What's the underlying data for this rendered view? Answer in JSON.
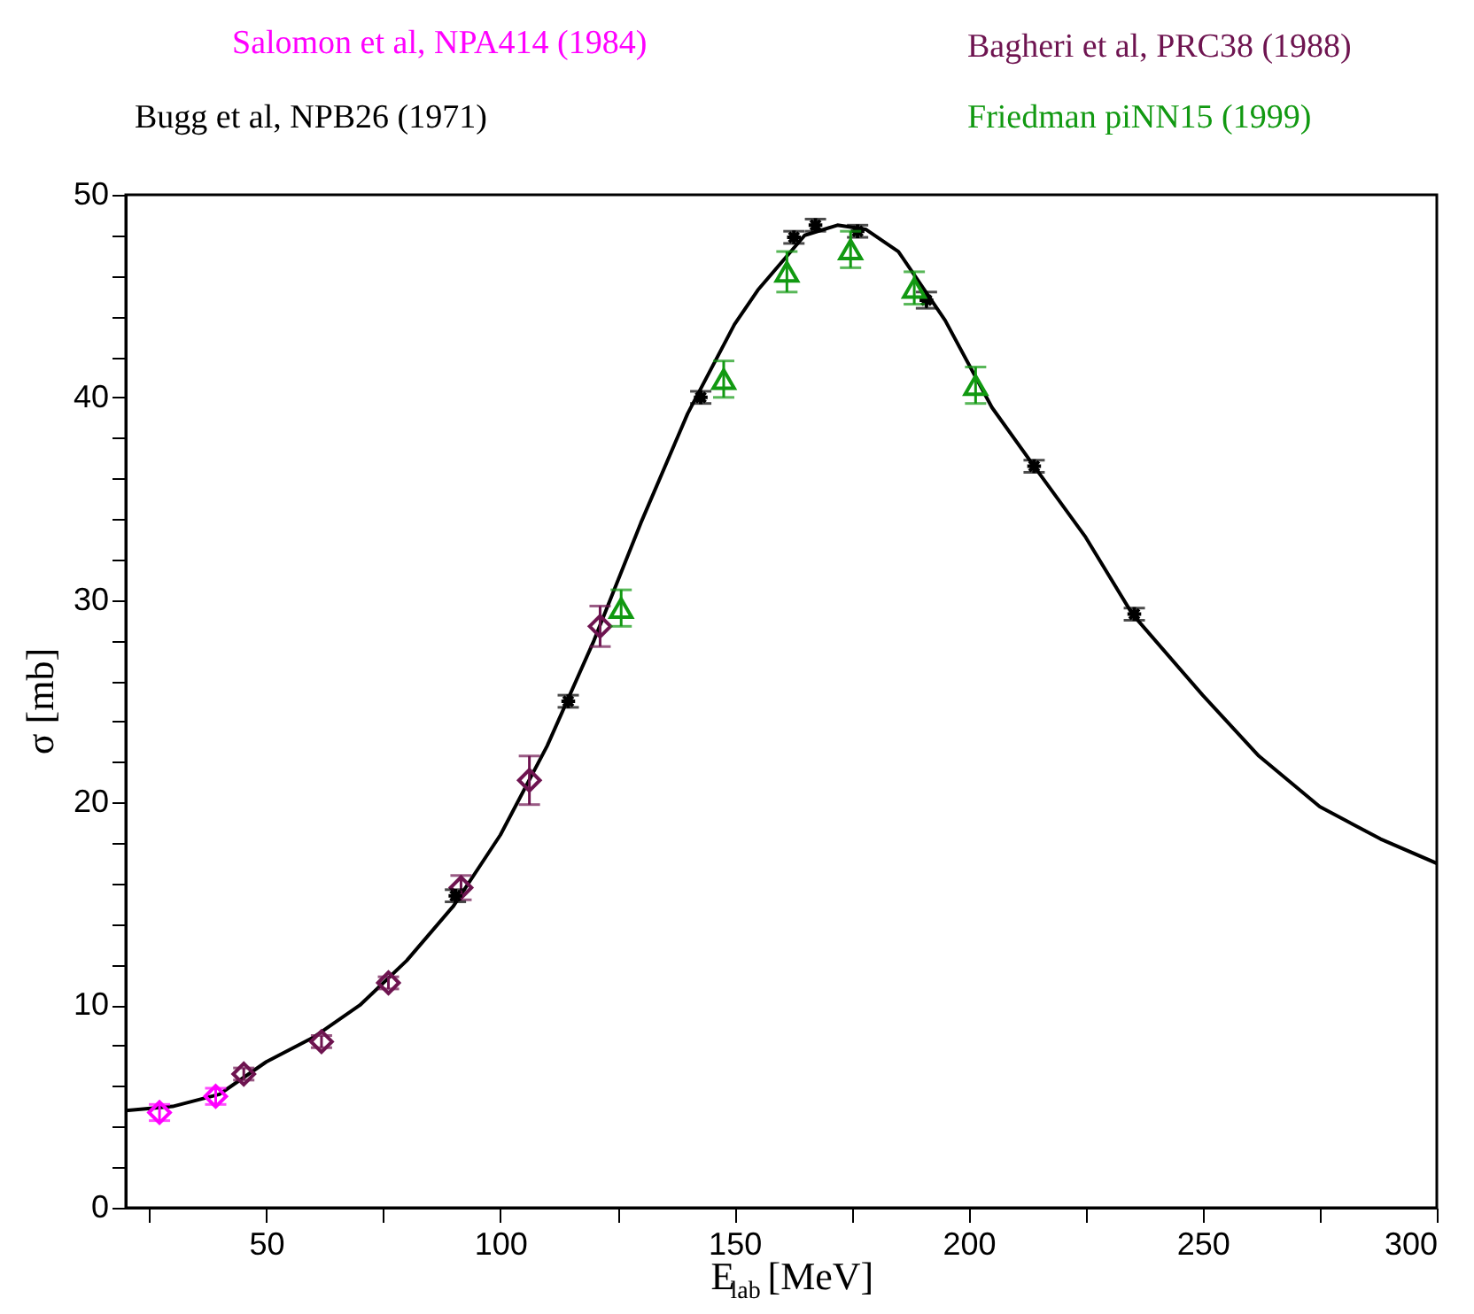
{
  "chart_data": {
    "type": "scatter",
    "xlabel": "E$_{lab}$[MeV]",
    "ylabel": "σ  [mb]",
    "xlim": [
      20,
      300
    ],
    "ylim": [
      0,
      50
    ],
    "xticks": [
      {
        "value": 25,
        "label": null
      },
      50,
      {
        "value": 75,
        "label": null
      },
      100,
      {
        "value": 125,
        "label": null
      },
      150,
      {
        "value": 175,
        "label": null
      },
      200,
      {
        "value": 225,
        "label": null
      },
      250,
      {
        "value": 275,
        "label": null
      },
      300
    ],
    "yticks": [
      0,
      {
        "value": 2,
        "label": null
      },
      {
        "value": 4,
        "label": null
      },
      {
        "value": 6,
        "label": null
      },
      {
        "value": 8,
        "label": null
      },
      10,
      {
        "value": 12,
        "label": null
      },
      {
        "value": 14,
        "label": null
      },
      {
        "value": 16,
        "label": null
      },
      {
        "value": 18,
        "label": null
      },
      20,
      {
        "value": 22,
        "label": null
      },
      {
        "value": 24,
        "label": null
      },
      {
        "value": 26,
        "label": null
      },
      {
        "value": 28,
        "label": null
      },
      30,
      {
        "value": 32,
        "label": null
      },
      {
        "value": 34,
        "label": null
      },
      {
        "value": 36,
        "label": null
      },
      {
        "value": 38,
        "label": null
      },
      40,
      {
        "value": 42,
        "label": null
      },
      {
        "value": 44,
        "label": null
      },
      {
        "value": 46,
        "label": null
      },
      {
        "value": 48,
        "label": null
      },
      50
    ],
    "grid": false,
    "legend": "top",
    "series": [
      {
        "type": "line",
        "color": "#000000",
        "marker": "none",
        "line_style": "solid",
        "x": [
          20,
          30,
          40,
          50,
          60,
          70,
          80,
          90,
          100,
          110,
          120,
          130,
          140,
          150,
          155,
          165,
          172,
          178,
          185,
          195,
          205,
          214,
          225,
          235,
          250,
          262,
          275,
          288,
          300
        ],
        "values": [
          4.8,
          5.0,
          5.6,
          7.2,
          8.4,
          10.0,
          12.2,
          14.9,
          18.4,
          22.8,
          28.0,
          33.8,
          39.2,
          43.6,
          45.3,
          48.0,
          48.5,
          48.3,
          47.2,
          43.8,
          39.5,
          36.6,
          33.1,
          29.3,
          25.3,
          22.3,
          19.8,
          18.2,
          17.0
        ]
      },
      {
        "name": "Salomon et al, NPA414 (1984)",
        "color": "#ff00ff",
        "marker": "diamond",
        "x": [
          27.2,
          39.2
        ],
        "values": [
          4.7,
          5.5
        ],
        "errors": [
          0.4,
          0.4
        ]
      },
      {
        "name": "Bagheri et al, PRC38 (1988)",
        "color": "#6e1450",
        "marker": "diamond",
        "x": [
          45.2,
          61.8,
          76.1,
          91.6,
          106.2,
          121.3
        ],
        "values": [
          6.6,
          8.2,
          11.1,
          15.8,
          21.1,
          28.7
        ],
        "errors": [
          0.3,
          0.3,
          0.3,
          0.6,
          1.2,
          1.0
        ]
      },
      {
        "name": "Bugg et al, NPB26 (1971)",
        "color": "#000000",
        "marker": "cross",
        "x": [
          90.4,
          114.5,
          142.8,
          162.7,
          167.3,
          176.3,
          191.0,
          214.0,
          235.4
        ],
        "values": [
          15.4,
          25.0,
          40.0,
          47.9,
          48.5,
          48.2,
          44.8,
          36.6,
          29.3
        ],
        "errors": [
          0.3,
          0.3,
          0.3,
          0.3,
          0.3,
          0.3,
          0.4,
          0.3,
          0.3
        ]
      },
      {
        "name": "Friedman piNN15 (1999)",
        "color": "#119911",
        "marker": "triangle",
        "x": [
          125.8,
          147.7,
          161.2,
          174.8,
          188.4,
          201.5
        ],
        "values": [
          29.6,
          40.9,
          46.2,
          47.3,
          45.4,
          40.6
        ],
        "errors": [
          0.9,
          0.9,
          1.0,
          0.9,
          0.8,
          0.9
        ]
      }
    ]
  }
}
